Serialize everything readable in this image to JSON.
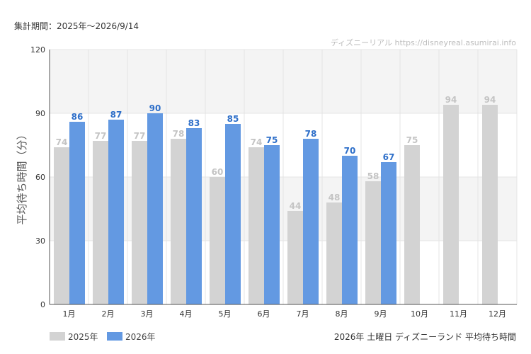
{
  "period_label": "集計期間：2025年～2026/9/14",
  "credit": "ディズニーリアル https://disneyreal.asumirai.info",
  "footer_title": "2026年 土曜日 ディズニーランド 平均待ち時間",
  "colors": {
    "series_2025": "#d3d3d3",
    "series_2026": "#6399e2",
    "label_2025": "#c4c4c4",
    "label_2026": "#2e6fc9",
    "band": "#f4f4f4",
    "grid": "#e4e4e4"
  },
  "chart_data": {
    "type": "bar",
    "ylabel": "平均待ち時間（分）",
    "ylim": [
      0,
      120
    ],
    "yticks": [
      0,
      30,
      60,
      90,
      120
    ],
    "categories": [
      "1月",
      "2月",
      "3月",
      "4月",
      "5月",
      "6月",
      "7月",
      "8月",
      "9月",
      "10月",
      "11月",
      "12月"
    ],
    "series": [
      {
        "name": "2025年",
        "values": [
          74,
          77,
          77,
          78,
          60,
          74,
          44,
          48,
          58,
          75,
          94,
          94
        ]
      },
      {
        "name": "2026年",
        "values": [
          86,
          87,
          90,
          83,
          85,
          75,
          78,
          70,
          67,
          null,
          null,
          null
        ]
      }
    ],
    "legend_position": "bottom-left",
    "grid": true
  }
}
